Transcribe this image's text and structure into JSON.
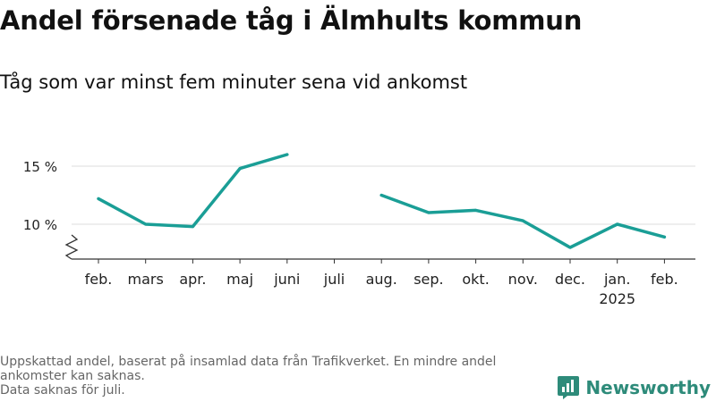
{
  "title": "Andel försenade tåg i Älmhults kommun",
  "subtitle": "Tåg som var minst fem minuter sena vid ankomst",
  "footer": {
    "line1": "Uppskattad andel, baserat på insamlad data från Trafikverket. En mindre andel ankomster kan saknas.",
    "line2": "Data saknas för juli."
  },
  "logo": {
    "text": "Newsworthy",
    "icon": "newsworthy-logo-icon"
  },
  "colors": {
    "line": "#1a9e96",
    "grid": "#dddddd",
    "axis": "#333333",
    "text": "#222222"
  },
  "chart_data": {
    "type": "line",
    "categories": [
      "feb.",
      "mars",
      "apr.",
      "maj",
      "juni",
      "juli",
      "aug.",
      "sep.",
      "okt.",
      "nov.",
      "dec.",
      "jan.",
      "feb."
    ],
    "year_labels": [
      "",
      "",
      "",
      "",
      "",
      "",
      "",
      "",
      "",
      "",
      "",
      "2025",
      ""
    ],
    "series": [
      {
        "values": [
          12.2,
          10.0,
          9.8,
          14.8,
          16.0,
          null,
          12.5,
          11.0,
          11.2,
          10.3,
          8.0,
          10.0,
          8.9
        ]
      }
    ],
    "yticks": [
      10,
      15
    ],
    "ytick_labels": [
      "10 %",
      "15 %"
    ],
    "ylim": [
      7,
      17
    ],
    "axis_break": true,
    "grid": true
  }
}
